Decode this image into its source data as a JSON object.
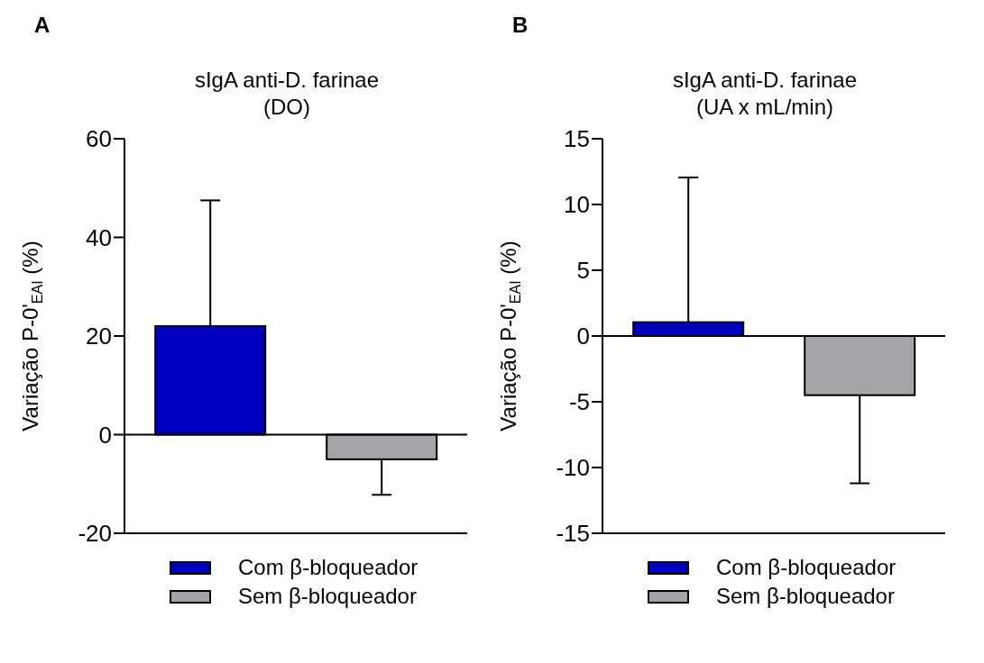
{
  "chart_data": [
    {
      "type": "bar",
      "title": "sIgA anti-D. farinae",
      "subtitle": "(DO)",
      "ylabel": "Variação P-0'$_{EAI}$ (%)",
      "annotations": [
        "A"
      ],
      "categories": [
        null,
        null
      ],
      "series": [
        {
          "name": "Com β-bloqueador",
          "color": "#0000c0",
          "values": [
            22,
            null
          ],
          "errors": [
            [
              22,
              47.5
            ],
            null
          ]
        },
        {
          "name": "Sem β-bloqueador",
          "color": "#a5a4a9",
          "values": [
            null,
            -5
          ],
          "errors": [
            null,
            [
              -12.2,
              -5
            ]
          ]
        }
      ],
      "ylim": [
        -20,
        60
      ],
      "yticks": [
        -20,
        0,
        20,
        40,
        60
      ],
      "ref_lines": [
        {
          "axis": "y",
          "value": 0
        }
      ],
      "tick_labels": "y",
      "legend": "bottom"
    },
    {
      "type": "bar",
      "title": "sIgA anti-D. farinae",
      "subtitle": "(UA x mL/min)",
      "ylabel": "Variação P-0'$_{EAI}$  (%)",
      "annotations": [
        "B"
      ],
      "categories": [
        null,
        null
      ],
      "series": [
        {
          "name": "Com β-bloqueador",
          "color": "#0000c0",
          "values": [
            1.05,
            null
          ],
          "errors": [
            [
              1.05,
              12.05
            ],
            null
          ]
        },
        {
          "name": "Sem β-bloqueador",
          "color": "#a5a4a9",
          "values": [
            null,
            -4.5
          ],
          "errors": [
            null,
            [
              -11.2,
              -4.5
            ]
          ]
        }
      ],
      "ylim": [
        -15,
        15
      ],
      "yticks": [
        -15,
        -10,
        -5,
        0,
        5,
        10,
        15
      ],
      "ref_lines": [
        {
          "axis": "y",
          "value": 0
        }
      ],
      "tick_labels": "y",
      "legend": "bottom"
    }
  ]
}
